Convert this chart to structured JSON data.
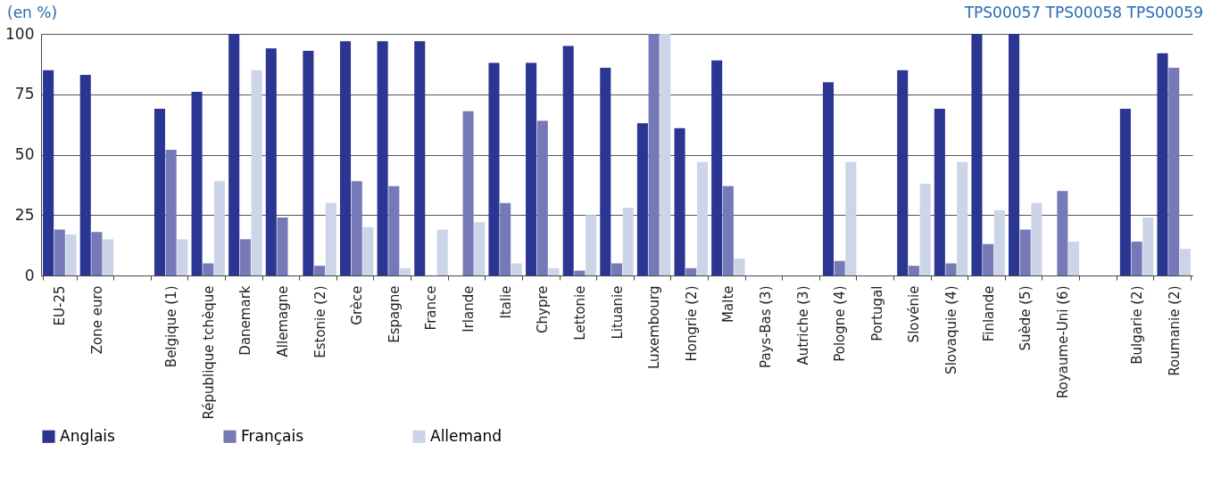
{
  "chart_data": {
    "type": "bar",
    "ylabel": "(en %)",
    "annotations": [
      "TPS00057 TPS00058 TPS00059"
    ],
    "categories": [
      "EU-25",
      "Zone euro",
      null,
      "Belgique (1)",
      "République tchèque",
      "Danemark",
      "Allemagne",
      "Estonie (2)",
      "Grèce",
      "Espagne",
      "France",
      "Irlande",
      "Italie",
      "Chypre",
      "Lettonie",
      "Lituanie",
      "Luxembourg",
      "Hongrie (2)",
      "Malte",
      "Pays-Bas (3)",
      "Autriche (3)",
      "Pologne (4)",
      "Portugal",
      "Slovénie",
      "Slovaquie (4)",
      "Finlande",
      "Suède (5)",
      "Royaume-Uni (6)",
      null,
      "Bulgarie (2)",
      "Roumanie (2)"
    ],
    "series": [
      {
        "name": "Anglais",
        "color": "#2b3592",
        "values": [
          85,
          83,
          null,
          69,
          76,
          100,
          94,
          93,
          97,
          97,
          97,
          null,
          88,
          88,
          95,
          86,
          63,
          61,
          89,
          null,
          null,
          80,
          null,
          85,
          69,
          100,
          100,
          null,
          null,
          69,
          92
        ]
      },
      {
        "name": "Français",
        "color": "#7579b8",
        "values": [
          19,
          18,
          null,
          52,
          5,
          15,
          24,
          4,
          39,
          37,
          null,
          68,
          30,
          64,
          2,
          5,
          100,
          3,
          37,
          null,
          null,
          6,
          null,
          4,
          5,
          13,
          19,
          35,
          null,
          14,
          86
        ]
      },
      {
        "name": "Allemand",
        "color": "#ccd4e8",
        "values": [
          17,
          15,
          null,
          15,
          39,
          85,
          null,
          30,
          20,
          3,
          19,
          22,
          5,
          3,
          25,
          28,
          100,
          47,
          7,
          null,
          null,
          47,
          null,
          38,
          47,
          27,
          30,
          14,
          null,
          24,
          11
        ]
      }
    ],
    "ylim": [
      0,
      100
    ],
    "yticks": [
      0,
      25,
      50,
      75,
      100
    ],
    "grid": "y",
    "legend": "bottom"
  }
}
